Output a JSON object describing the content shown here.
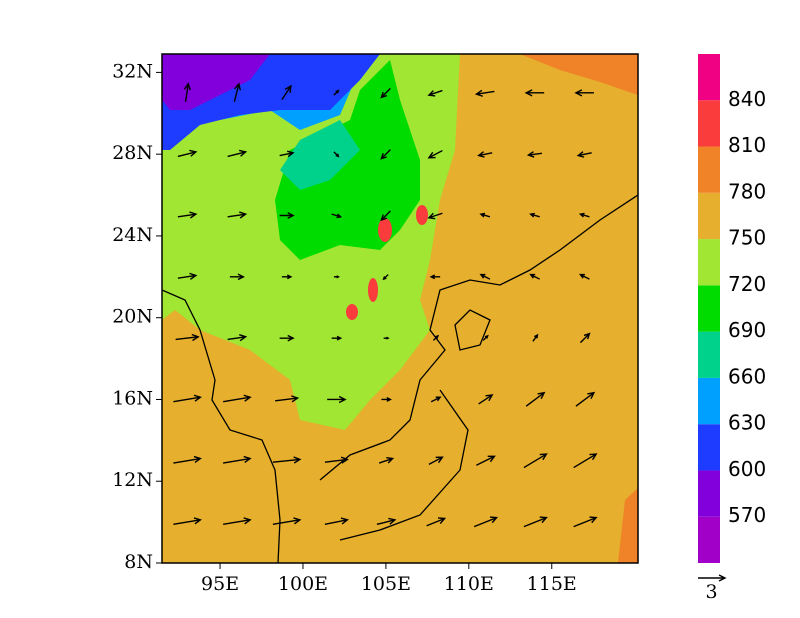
{
  "map": {
    "xlim": [
      91.5,
      120.2
    ],
    "ylim": [
      8,
      32.9
    ],
    "xticks": [
      {
        "value": 95,
        "label": "95E"
      },
      {
        "value": 100,
        "label": "100E"
      },
      {
        "value": 105,
        "label": "105E"
      },
      {
        "value": 110,
        "label": "110E"
      },
      {
        "value": 115,
        "label": "115E"
      }
    ],
    "yticks": [
      {
        "value": 8,
        "label": "8N"
      },
      {
        "value": 12,
        "label": "12N"
      },
      {
        "value": 16,
        "label": "16N"
      },
      {
        "value": 20,
        "label": "20N"
      },
      {
        "value": 24,
        "label": "24N"
      },
      {
        "value": 28,
        "label": "28N"
      },
      {
        "value": 32,
        "label": "32N"
      }
    ],
    "colorbar": {
      "levels": [
        570,
        600,
        630,
        660,
        690,
        720,
        750,
        780,
        810,
        840
      ],
      "colors": [
        "#a000c8",
        "#8200dc",
        "#1e3cff",
        "#00a0ff",
        "#00d28c",
        "#00dc00",
        "#a0e632",
        "#e6af2d",
        "#f08228",
        "#fa3c3c",
        "#f00082"
      ]
    },
    "wind": {
      "reference_vector": 3,
      "lon": [
        93,
        96,
        99,
        102,
        105,
        108,
        111,
        114,
        117
      ],
      "lat": [
        31,
        28,
        25,
        22,
        19,
        16,
        13,
        10
      ],
      "u": [
        [
          0.3,
          0.5,
          1,
          0.5,
          -1,
          -1.5,
          -2,
          -2,
          -2
        ],
        [
          2,
          2,
          1.5,
          0.5,
          -1,
          -1.5,
          -1.5,
          -1.5,
          -1.5
        ],
        [
          2,
          2,
          1.5,
          1,
          -1,
          -1.5,
          -1,
          -1,
          -1
        ],
        [
          2,
          1.5,
          1,
          0.5,
          -0.5,
          -1,
          -1,
          -1,
          -1
        ],
        [
          2.5,
          2,
          1.5,
          1,
          0.5,
          0.5,
          0.5,
          0.5,
          1
        ],
        [
          3,
          3,
          2.5,
          2,
          1,
          1,
          1.5,
          2,
          2
        ],
        [
          3,
          3,
          3,
          2.5,
          1.5,
          1.5,
          2,
          2.5,
          2.5
        ],
        [
          3,
          3,
          3,
          2.5,
          2,
          2,
          2.5,
          2.5,
          2.5
        ]
      ],
      "v": [
        [
          2,
          2,
          1.5,
          0.5,
          -1,
          -0.5,
          -0.3,
          0,
          0
        ],
        [
          0.5,
          0.5,
          0.3,
          -0.5,
          -1,
          -0.8,
          -0.3,
          -0.2,
          -0.3
        ],
        [
          0.3,
          0.3,
          0,
          -0.3,
          -1,
          -0.5,
          0.3,
          0.3,
          0.3
        ],
        [
          0.3,
          0,
          0,
          0,
          -0.5,
          0,
          0.5,
          0.5,
          0.5
        ],
        [
          0.3,
          0.3,
          0,
          0,
          0,
          0.5,
          0.5,
          0.7,
          1
        ],
        [
          0.5,
          0.5,
          0.3,
          0,
          0,
          0.5,
          1,
          1.5,
          1.5
        ],
        [
          0.5,
          0.5,
          0.3,
          0.3,
          0.5,
          0.8,
          1,
          1.5,
          1.5
        ],
        [
          0.5,
          0.5,
          0.5,
          0.5,
          0.5,
          0.8,
          1,
          1,
          1
        ]
      ]
    }
  }
}
